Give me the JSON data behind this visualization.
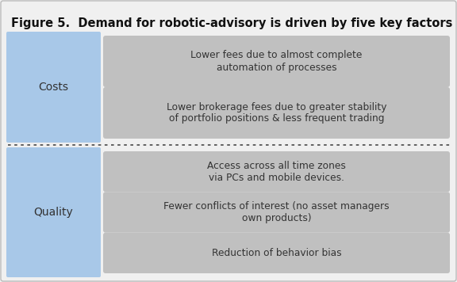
{
  "title": "Figure 5.  Demand for robotic-advisory is driven by five key factors",
  "title_fontsize": 10.5,
  "background_color": "#f0f0f0",
  "outer_bg": "#f0f0f0",
  "inner_bg": "#ffffff",
  "left_box_color": "#a8c8e8",
  "right_box_color": "#c0c0c0",
  "left_labels": [
    "Costs",
    "Quality"
  ],
  "right_texts": [
    "Lower fees due to almost complete\nautomation of processes",
    "Lower brokerage fees due to greater stability\nof portfolio positions & less frequent trading",
    "Access across all time zones\nvia PCs and mobile devices.",
    "Fewer conflicts of interest (no asset managers\nown products)",
    "Reduction of behavior bias"
  ],
  "font_color": "#333333",
  "dotted_line_color": "#555555",
  "label_fontsize": 10,
  "text_fontsize": 8.8
}
